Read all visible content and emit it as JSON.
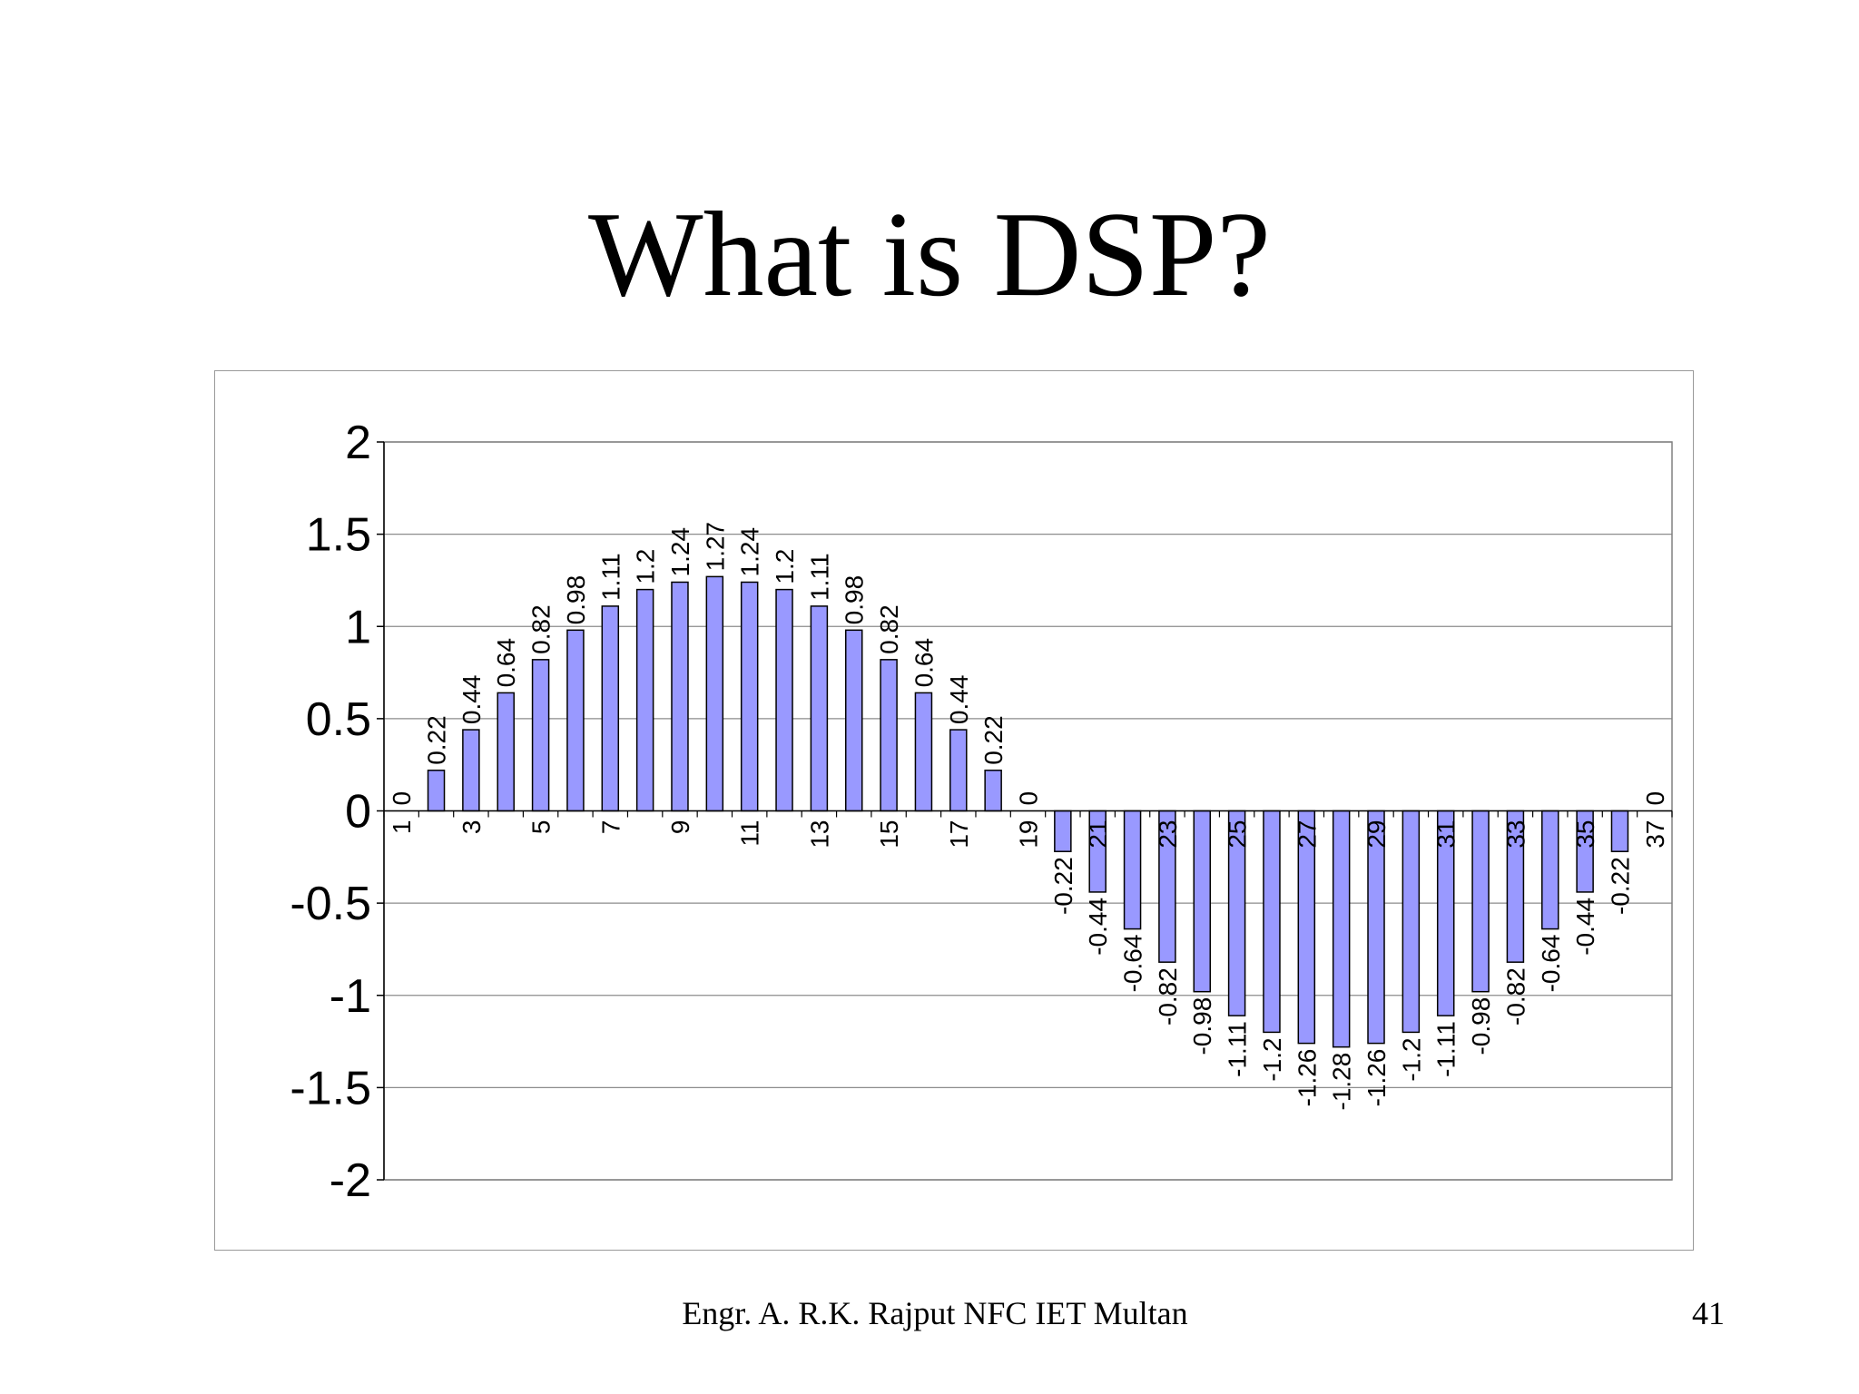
{
  "slide": {
    "title": "What is DSP?",
    "footer_author": "Engr. A. R.K. Rajput NFC IET Multan",
    "page_number": "41"
  },
  "chart_data": {
    "type": "bar",
    "title": "",
    "xlabel": "",
    "ylabel": "",
    "ylim": [
      -2,
      2
    ],
    "yticks": [
      -2,
      -1.5,
      -1,
      -0.5,
      0,
      0.5,
      1,
      1.5,
      2
    ],
    "ytick_labels": [
      "-2",
      "-1.5",
      "-1",
      "-0.5",
      "0",
      "0.5",
      "1",
      "1.5",
      "2"
    ],
    "grid": true,
    "legend": "none",
    "bar_color": "#9999ff",
    "categories": [
      "1",
      "2",
      "3",
      "4",
      "5",
      "6",
      "7",
      "8",
      "9",
      "10",
      "11",
      "12",
      "13",
      "14",
      "15",
      "16",
      "17",
      "18",
      "19",
      "20",
      "21",
      "22",
      "23",
      "24",
      "25",
      "26",
      "27",
      "28",
      "29",
      "30",
      "31",
      "32",
      "33",
      "34",
      "35",
      "36",
      "37"
    ],
    "xtick_labels_shown": [
      "1",
      "3",
      "5",
      "7",
      "9",
      "11",
      "13",
      "15",
      "17",
      "19",
      "21",
      "23",
      "25",
      "27",
      "29",
      "31",
      "33",
      "35",
      "37"
    ],
    "values": [
      0,
      0.22,
      0.44,
      0.64,
      0.82,
      0.98,
      1.11,
      1.2,
      1.24,
      1.27,
      1.24,
      1.2,
      1.11,
      0.98,
      0.82,
      0.64,
      0.44,
      0.22,
      0,
      -0.22,
      -0.44,
      -0.64,
      -0.82,
      -0.98,
      -1.11,
      -1.2,
      -1.26,
      -1.28,
      -1.26,
      -1.2,
      -1.11,
      -0.98,
      -0.82,
      -0.64,
      -0.44,
      -0.22,
      0
    ],
    "data_labels": [
      "0",
      "0.22",
      "0.44",
      "0.64",
      "0.82",
      "0.98",
      "1.11",
      "1.2",
      "1.24",
      "1.27",
      "1.24",
      "1.2",
      "1.11",
      "0.98",
      "0.82",
      "0.64",
      "0.44",
      "0.22",
      "0",
      "-0.22",
      "-0.44",
      "-0.64",
      "-0.82",
      "-0.98",
      "-1.11",
      "-1.2",
      "-1.26",
      "-1.28",
      "-1.26",
      "-1.2",
      "-1.11",
      "-0.98",
      "-0.82",
      "-0.64",
      "-0.44",
      "-0.22",
      "0"
    ]
  }
}
